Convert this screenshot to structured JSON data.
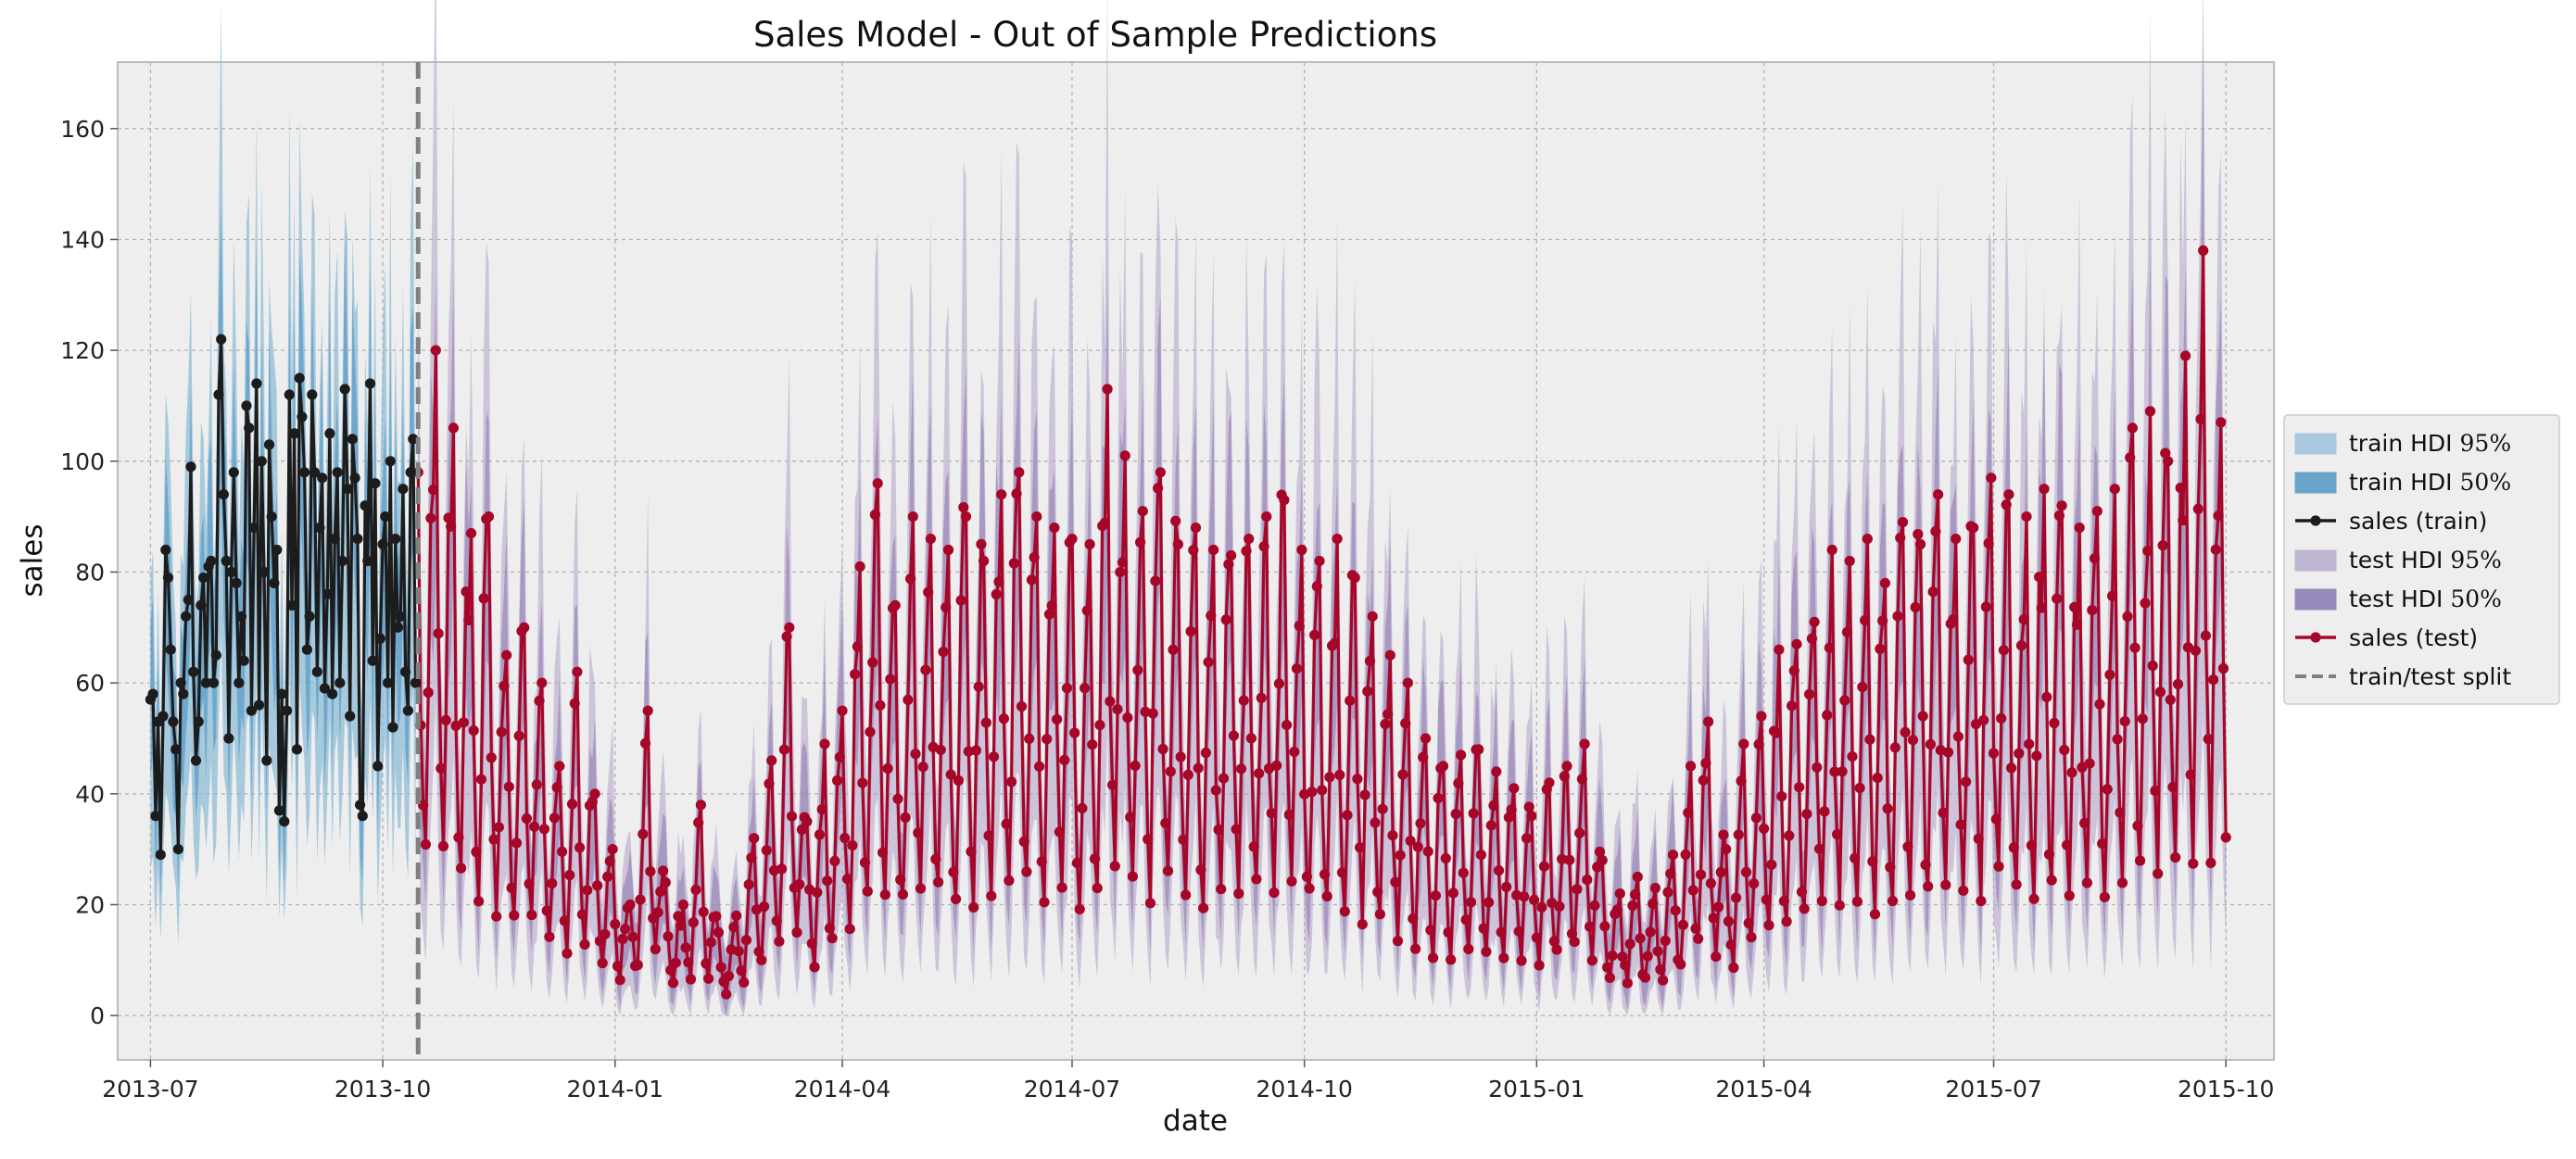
{
  "chart_data": {
    "type": "line",
    "title": "Sales Model - Out of Sample Predictions",
    "xlabel": "date",
    "ylabel": "sales",
    "xlim": [
      "2013-06-18",
      "2015-10-20"
    ],
    "ylim": [
      -8,
      172
    ],
    "grid": true,
    "legend_position": "right",
    "x_ticks": [
      "2013-07",
      "2013-10",
      "2014-01",
      "2014-04",
      "2014-07",
      "2014-10",
      "2015-01",
      "2015-04",
      "2015-07",
      "2015-10"
    ],
    "y_ticks": [
      0,
      20,
      40,
      60,
      80,
      100,
      120,
      140,
      160
    ],
    "train_test_split": "2013-10-15",
    "series": [
      {
        "name": "sales (train)",
        "color": "#000000",
        "x_start": "2013-07-01",
        "x_end": "2013-10-15",
        "values": [
          57,
          58,
          36,
          53,
          29,
          54,
          84,
          79,
          66,
          53,
          48,
          30,
          60,
          58,
          72,
          75,
          99,
          62,
          46,
          53,
          74,
          79,
          60,
          81,
          82,
          60,
          65,
          112,
          122,
          94,
          82,
          50,
          80,
          98,
          78,
          60,
          72,
          64,
          110,
          106,
          55,
          88,
          114,
          56,
          100,
          80,
          46,
          103,
          90,
          78,
          84,
          37,
          58,
          35,
          55,
          112,
          74,
          105,
          48,
          115,
          108,
          98,
          66,
          72,
          112,
          98,
          62,
          88,
          97,
          59,
          76,
          105,
          58,
          86,
          98,
          60,
          82,
          113,
          95,
          54,
          104,
          97,
          86,
          38,
          36,
          92,
          82,
          114,
          64,
          96,
          45,
          68,
          85,
          90,
          60,
          100,
          52,
          86,
          70,
          72,
          95,
          62,
          55,
          98,
          104,
          60
        ]
      },
      {
        "name": "sales (test)",
        "color": "#a60628",
        "x_start": "2013-10-15",
        "x_end": "2015-10-01",
        "values_at": [
          [
            "2013-10-15",
            98
          ],
          [
            "2013-10-22",
            120
          ],
          [
            "2013-10-29",
            106
          ],
          [
            "2013-11-05",
            87
          ],
          [
            "2013-11-12",
            90
          ],
          [
            "2013-11-19",
            65
          ],
          [
            "2013-11-26",
            70
          ],
          [
            "2013-12-03",
            60
          ],
          [
            "2013-12-10",
            45
          ],
          [
            "2013-12-17",
            62
          ],
          [
            "2013-12-24",
            40
          ],
          [
            "2013-12-31",
            30
          ],
          [
            "2014-01-07",
            20
          ],
          [
            "2014-01-14",
            55
          ],
          [
            "2014-01-21",
            24
          ],
          [
            "2014-01-28",
            20
          ],
          [
            "2014-02-04",
            38
          ],
          [
            "2014-02-11",
            15
          ],
          [
            "2014-02-18",
            18
          ],
          [
            "2014-02-25",
            32
          ],
          [
            "2014-03-04",
            46
          ],
          [
            "2014-03-11",
            70
          ],
          [
            "2014-03-18",
            35
          ],
          [
            "2014-03-25",
            49
          ],
          [
            "2014-04-01",
            55
          ],
          [
            "2014-04-08",
            81
          ],
          [
            "2014-04-15",
            96
          ],
          [
            "2014-04-22",
            74
          ],
          [
            "2014-04-29",
            90
          ],
          [
            "2014-05-06",
            86
          ],
          [
            "2014-05-13",
            84
          ],
          [
            "2014-05-20",
            90
          ],
          [
            "2014-05-27",
            82
          ],
          [
            "2014-06-03",
            94
          ],
          [
            "2014-06-10",
            98
          ],
          [
            "2014-06-17",
            90
          ],
          [
            "2014-06-24",
            88
          ],
          [
            "2014-07-01",
            86
          ],
          [
            "2014-07-08",
            85
          ],
          [
            "2014-07-15",
            113
          ],
          [
            "2014-07-22",
            101
          ],
          [
            "2014-07-29",
            91
          ],
          [
            "2014-08-05",
            98
          ],
          [
            "2014-08-12",
            85
          ],
          [
            "2014-08-19",
            88
          ],
          [
            "2014-08-26",
            84
          ],
          [
            "2014-09-02",
            83
          ],
          [
            "2014-09-09",
            86
          ],
          [
            "2014-09-16",
            90
          ],
          [
            "2014-09-23",
            93
          ],
          [
            "2014-09-30",
            84
          ],
          [
            "2014-10-07",
            82
          ],
          [
            "2014-10-14",
            86
          ],
          [
            "2014-10-21",
            79
          ],
          [
            "2014-10-28",
            72
          ],
          [
            "2014-11-04",
            65
          ],
          [
            "2014-11-11",
            60
          ],
          [
            "2014-11-18",
            50
          ],
          [
            "2014-11-25",
            45
          ],
          [
            "2014-12-02",
            47
          ],
          [
            "2014-12-09",
            48
          ],
          [
            "2014-12-16",
            44
          ],
          [
            "2014-12-23",
            41
          ],
          [
            "2014-12-30",
            36
          ],
          [
            "2015-01-06",
            42
          ],
          [
            "2015-01-13",
            45
          ],
          [
            "2015-01-20",
            49
          ],
          [
            "2015-01-27",
            28
          ],
          [
            "2015-02-03",
            22
          ],
          [
            "2015-02-10",
            25
          ],
          [
            "2015-02-17",
            23
          ],
          [
            "2015-02-24",
            29
          ],
          [
            "2015-03-03",
            45
          ],
          [
            "2015-03-10",
            53
          ],
          [
            "2015-03-17",
            30
          ],
          [
            "2015-03-24",
            49
          ],
          [
            "2015-03-31",
            54
          ],
          [
            "2015-04-07",
            66
          ],
          [
            "2015-04-14",
            67
          ],
          [
            "2015-04-21",
            71
          ],
          [
            "2015-04-28",
            84
          ],
          [
            "2015-05-05",
            82
          ],
          [
            "2015-05-12",
            86
          ],
          [
            "2015-05-19",
            78
          ],
          [
            "2015-05-26",
            89
          ],
          [
            "2015-06-02",
            85
          ],
          [
            "2015-06-09",
            94
          ],
          [
            "2015-06-16",
            86
          ],
          [
            "2015-06-23",
            88
          ],
          [
            "2015-06-30",
            97
          ],
          [
            "2015-07-07",
            94
          ],
          [
            "2015-07-14",
            90
          ],
          [
            "2015-07-21",
            95
          ],
          [
            "2015-07-28",
            92
          ],
          [
            "2015-08-04",
            88
          ],
          [
            "2015-08-11",
            91
          ],
          [
            "2015-08-18",
            95
          ],
          [
            "2015-08-25",
            106
          ],
          [
            "2015-09-01",
            109
          ],
          [
            "2015-09-08",
            100
          ],
          [
            "2015-09-15",
            119
          ],
          [
            "2015-09-22",
            138
          ],
          [
            "2015-09-29",
            107
          ]
        ]
      },
      {
        "name": "train HDI $95\\%$",
        "color": "#8fbcd6"
      },
      {
        "name": "train HDI $50\\%$",
        "color": "#5b9cc9"
      },
      {
        "name": "test HDI $95\\%$",
        "color": "#b7a9cc"
      },
      {
        "name": "test HDI $50\\%$",
        "color": "#8a77b1"
      },
      {
        "name": "train/test split",
        "color": "#808080"
      }
    ],
    "legend": [
      {
        "label": "train HDI",
        "suffix": "95%",
        "kind": "patch",
        "color": "#a7c8dd"
      },
      {
        "label": "train HDI",
        "suffix": "50%",
        "kind": "patch",
        "color": "#69a5cb"
      },
      {
        "label": "sales (train)",
        "suffix": "",
        "kind": "line-marker",
        "color": "#1c1c1c"
      },
      {
        "label": "test HDI",
        "suffix": "95%",
        "kind": "patch",
        "color": "#bfb6d2"
      },
      {
        "label": "test HDI",
        "suffix": "50%",
        "kind": "patch",
        "color": "#978bbb"
      },
      {
        "label": "sales (test)",
        "suffix": "",
        "kind": "line-marker",
        "color": "#a60628"
      },
      {
        "label": "train/test split",
        "suffix": "",
        "kind": "dashed-line",
        "color": "#808080"
      }
    ]
  }
}
